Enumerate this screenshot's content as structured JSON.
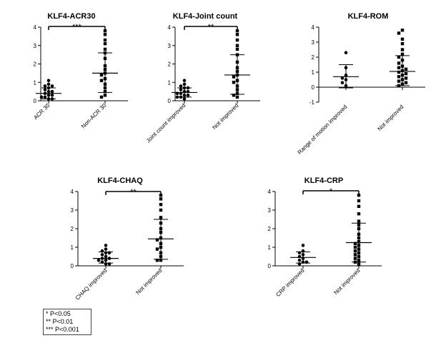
{
  "chart_data": [
    {
      "type": "scatter",
      "title": "KLF4-ACR30",
      "ylim": [
        0,
        4
      ],
      "yticks": [
        0,
        1,
        2,
        3,
        4
      ],
      "categories": [
        "ACR 30",
        "Non-ACR 30"
      ],
      "groups": [
        {
          "name": "ACR 30",
          "marker": "circle",
          "values": [
            1.1,
            0.9,
            0.8,
            0.8,
            0.7,
            0.6,
            0.5,
            0.5,
            0.4,
            0.3,
            0.3,
            0.2,
            0.2,
            0.1,
            0.1
          ],
          "mean": 0.4,
          "sd_low": 0.1,
          "sd_high": 0.7
        },
        {
          "name": "Non-ACR 30",
          "marker": "square",
          "values": [
            3.8,
            3.6,
            3.3,
            3.1,
            2.8,
            2.6,
            2.3,
            1.9,
            1.7,
            1.5,
            1.4,
            1.2,
            1.1,
            0.9,
            0.7,
            0.5,
            0.3,
            0.2
          ],
          "mean": 1.5,
          "sd_low": 0.45,
          "sd_high": 2.6
        }
      ],
      "significance": "***"
    },
    {
      "type": "scatter",
      "title": "KLF4-Joint count",
      "ylim": [
        0,
        4
      ],
      "yticks": [
        0,
        1,
        2,
        3,
        4
      ],
      "categories": [
        "Joint count improved",
        "Not improved"
      ],
      "groups": [
        {
          "name": "Joint count improved",
          "marker": "circle",
          "values": [
            1.1,
            0.9,
            0.8,
            0.7,
            0.7,
            0.6,
            0.5,
            0.5,
            0.4,
            0.4,
            0.3,
            0.3,
            0.2,
            0.2,
            0.1
          ],
          "mean": 0.45,
          "sd_low": 0.2,
          "sd_high": 0.7
        },
        {
          "name": "Not improved",
          "marker": "square",
          "values": [
            3.8,
            3.6,
            3.3,
            3.0,
            2.8,
            2.5,
            2.1,
            1.8,
            1.6,
            1.4,
            1.3,
            1.1,
            1.0,
            0.8,
            0.6,
            0.4,
            0.3,
            0.2
          ],
          "mean": 1.4,
          "sd_low": 0.35,
          "sd_high": 2.5
        },
        {
          "name": "",
          "marker": "none",
          "values": []
        }
      ],
      "significance": "**"
    },
    {
      "type": "scatter",
      "title": "KLF4-ROM",
      "ylim": [
        -1,
        4
      ],
      "yticks": [
        -1,
        0,
        1,
        2,
        3,
        4
      ],
      "categories": [
        "Range of motion improved",
        "Not improved"
      ],
      "groups": [
        {
          "name": "Range of motion improved",
          "marker": "circle",
          "values": [
            2.3,
            1.3,
            0.8,
            0.6,
            0.5,
            0.3,
            0.1
          ],
          "mean": 0.7,
          "sd_low": -0.05,
          "sd_high": 1.5
        },
        {
          "name": "Not improved",
          "marker": "square",
          "values": [
            3.8,
            3.6,
            3.2,
            2.9,
            2.5,
            2.2,
            2.0,
            1.8,
            1.6,
            1.4,
            1.3,
            1.2,
            1.1,
            1.0,
            0.9,
            0.8,
            0.7,
            0.6,
            0.5,
            0.4,
            0.3,
            0.2,
            0.1
          ],
          "mean": 1.05,
          "sd_low": 0.1,
          "sd_high": 2.1
        }
      ],
      "significance": ""
    },
    {
      "type": "scatter",
      "title": "KLF4-CHAQ",
      "ylim": [
        0,
        4
      ],
      "yticks": [
        0,
        1,
        2,
        3,
        4
      ],
      "categories": [
        "CHAQ improved",
        "Not improved"
      ],
      "groups": [
        {
          "name": "CHAQ improved",
          "marker": "circle",
          "values": [
            1.1,
            0.9,
            0.8,
            0.7,
            0.7,
            0.6,
            0.5,
            0.4,
            0.4,
            0.3,
            0.3,
            0.2,
            0.1,
            0.1
          ],
          "mean": 0.4,
          "sd_low": 0.15,
          "sd_high": 0.75
        },
        {
          "name": "Not improved",
          "marker": "square",
          "values": [
            3.8,
            3.6,
            3.3,
            3.0,
            2.6,
            2.3,
            2.0,
            1.8,
            1.5,
            1.4,
            1.2,
            1.0,
            0.9,
            0.7,
            0.5,
            0.3,
            0.3
          ],
          "mean": 1.45,
          "sd_low": 0.35,
          "sd_high": 2.5
        }
      ],
      "significance": "**"
    },
    {
      "type": "scatter",
      "title": "KLF4-CRP",
      "ylim": [
        0,
        4
      ],
      "yticks": [
        0,
        1,
        2,
        3,
        4
      ],
      "categories": [
        "CRP improved",
        "Not improved"
      ],
      "groups": [
        {
          "name": "CRP improved",
          "marker": "circle",
          "values": [
            1.1,
            0.8,
            0.7,
            0.6,
            0.5,
            0.4,
            0.3,
            0.2,
            0.2,
            0.1
          ],
          "mean": 0.45,
          "sd_low": 0.15,
          "sd_high": 0.75
        },
        {
          "name": "Not improved",
          "marker": "square",
          "values": [
            3.8,
            3.5,
            3.2,
            2.8,
            2.4,
            2.2,
            2.0,
            1.7,
            1.5,
            1.3,
            1.2,
            1.1,
            1.0,
            0.9,
            0.8,
            0.7,
            0.6,
            0.5,
            0.4,
            0.3,
            0.2,
            0.1
          ],
          "mean": 1.25,
          "sd_low": 0.2,
          "sd_high": 2.3
        }
      ],
      "significance": "*"
    }
  ],
  "legend": {
    "lines": [
      "*    P<0.05",
      "**   P<0.01",
      "***  P<0.001"
    ]
  }
}
